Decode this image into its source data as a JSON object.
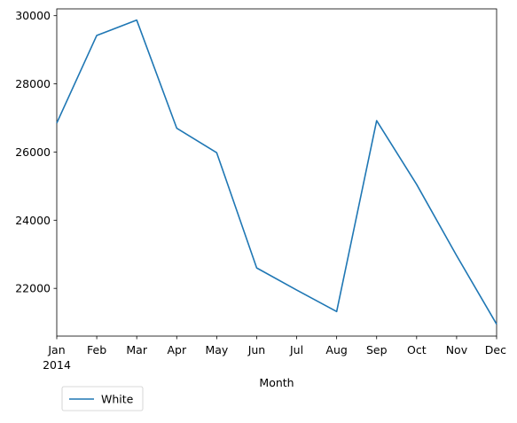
{
  "chart_data": {
    "type": "line",
    "title": "",
    "xlabel": "Month",
    "ylabel": "",
    "x": [
      "Jan",
      "Feb",
      "Mar",
      "Apr",
      "May",
      "Jun",
      "Jul",
      "Aug",
      "Sep",
      "Oct",
      "Nov",
      "Dec"
    ],
    "x_year_label": "2014",
    "series": [
      {
        "name": "White",
        "color": "#1f77b4",
        "values": [
          26850,
          29420,
          29870,
          26700,
          25980,
          22600,
          21950,
          21320,
          26920,
          25050,
          22960,
          20950
        ]
      }
    ],
    "ylim": [
      20600,
      30200
    ],
    "yticks": [
      22000,
      24000,
      26000,
      28000,
      30000
    ],
    "grid": false,
    "legend": {
      "placement": "bottom-left"
    }
  }
}
